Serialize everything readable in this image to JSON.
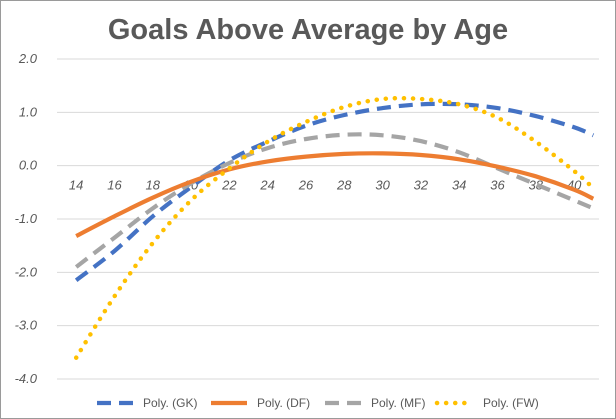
{
  "chart_data": {
    "type": "line",
    "title": "Goals Above Average by Age",
    "xlabel": "",
    "ylabel": "",
    "xlim": [
      13,
      41.3
    ],
    "ylim": [
      -4.0,
      2.0
    ],
    "y_ticks": [
      2.0,
      1.0,
      0.0,
      -1.0,
      -2.0,
      -3.0,
      -4.0
    ],
    "y_tick_labels": [
      "2.0",
      "1.0",
      "0.0",
      "-1.0",
      "-2.0",
      "-3.0",
      "-4.0"
    ],
    "x_ticks": [
      14,
      16,
      18,
      20,
      22,
      24,
      26,
      28,
      30,
      32,
      34,
      36,
      38,
      40
    ],
    "x_tick_labels": [
      "14",
      "16",
      "18",
      "20",
      "22",
      "24",
      "26",
      "28",
      "30",
      "32",
      "34",
      "36",
      "38",
      "40"
    ],
    "grid": "horizontal",
    "legend_position": "bottom",
    "series": [
      {
        "name": "Poly. (GK)",
        "color": "#4472C4",
        "style": "long-dash",
        "x": [
          14,
          16,
          18,
          20,
          22,
          24,
          26,
          28,
          30,
          32,
          34,
          36,
          38,
          40,
          41
        ],
        "values": [
          -2.15,
          -1.6,
          -0.95,
          -0.4,
          0.1,
          0.45,
          0.75,
          0.95,
          1.08,
          1.15,
          1.15,
          1.08,
          0.93,
          0.72,
          0.57
        ]
      },
      {
        "name": "Poly. (DF)",
        "color": "#ED7D31",
        "style": "solid",
        "x": [
          14,
          16,
          18,
          20,
          22,
          24,
          26,
          28,
          30,
          32,
          34,
          36,
          38,
          40,
          41
        ],
        "values": [
          -1.32,
          -0.95,
          -0.6,
          -0.3,
          -0.07,
          0.08,
          0.17,
          0.22,
          0.23,
          0.2,
          0.12,
          -0.02,
          -0.2,
          -0.45,
          -0.62
        ]
      },
      {
        "name": "Poly. (MF)",
        "color": "#A5A5A5",
        "style": "long-dash",
        "x": [
          14,
          16,
          18,
          20,
          22,
          24,
          26,
          28,
          30,
          32,
          34,
          36,
          38,
          40,
          41
        ],
        "values": [
          -1.9,
          -1.35,
          -0.8,
          -0.33,
          0.05,
          0.33,
          0.5,
          0.58,
          0.57,
          0.46,
          0.25,
          -0.05,
          -0.35,
          -0.65,
          -0.8
        ]
      },
      {
        "name": "Poly. (FW)",
        "color": "#FFC000",
        "style": "dotted",
        "x": [
          14,
          16,
          18,
          20,
          22,
          24,
          26,
          28,
          30,
          32,
          34,
          36,
          38,
          40,
          41
        ],
        "values": [
          -3.6,
          -2.45,
          -1.45,
          -0.65,
          -0.05,
          0.45,
          0.82,
          1.1,
          1.25,
          1.25,
          1.15,
          0.9,
          0.45,
          -0.1,
          -0.42
        ]
      }
    ]
  }
}
